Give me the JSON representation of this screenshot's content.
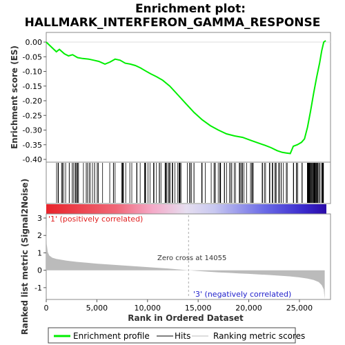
{
  "chart_data": {
    "type": "line",
    "title_line1": "Enrichment plot:",
    "title_line2": "HALLMARK_INTERFERON_GAMMA_RESPONSE",
    "es_ylabel": "Enrichment score (ES)",
    "metric_ylabel": "Ranked list metric (Signal2Noise)",
    "xlabel": "Rank in Ordered Dataset",
    "xlim": [
      0,
      28000
    ],
    "x_ticks": [
      "0",
      "5,000",
      "10,000",
      "15,000",
      "20,000",
      "25,000"
    ],
    "x_tick_values": [
      0,
      5000,
      10000,
      15000,
      20000,
      25000
    ],
    "es_ylim": [
      -0.4,
      0.0
    ],
    "es_ticks": [
      "0.00",
      "-0.05",
      "-0.10",
      "-0.15",
      "-0.20",
      "-0.25",
      "-0.30",
      "-0.35",
      "-0.40"
    ],
    "es_tick_values": [
      0.0,
      -0.05,
      -0.1,
      -0.15,
      -0.2,
      -0.25,
      -0.3,
      -0.35,
      -0.4
    ],
    "metric_ylim": [
      -1.6,
      3.0
    ],
    "metric_ticks": [
      "3",
      "2",
      "1",
      "0",
      "-1"
    ],
    "metric_tick_values": [
      3,
      2,
      1,
      0,
      -1
    ],
    "zero_cross_label": "Zero cross at 14055",
    "zero_cross": 14055,
    "pos_label": "'1' (positively correlated)",
    "neg_label": "'3' (negatively correlated)",
    "enrichment_profile": {
      "x": [
        0,
        1000,
        1300,
        1800,
        2200,
        2600,
        3100,
        3600,
        4200,
        4700,
        5200,
        5800,
        6300,
        6800,
        7300,
        7800,
        8300,
        8800,
        9300,
        9800,
        10300,
        10900,
        11500,
        12200,
        13000,
        13800,
        14600,
        15400,
        16200,
        17000,
        17800,
        18600,
        19400,
        20200,
        21000,
        21600,
        22200,
        22800,
        23300,
        23700,
        24100,
        24400,
        24800,
        25200,
        25500,
        25800,
        26100,
        26400,
        26700,
        27000,
        27200,
        27400,
        27600
      ],
      "y": [
        0.0,
        -0.033,
        -0.025,
        -0.04,
        -0.047,
        -0.043,
        -0.053,
        -0.056,
        -0.058,
        -0.062,
        -0.066,
        -0.075,
        -0.068,
        -0.058,
        -0.062,
        -0.072,
        -0.075,
        -0.08,
        -0.088,
        -0.098,
        -0.108,
        -0.118,
        -0.13,
        -0.15,
        -0.18,
        -0.21,
        -0.24,
        -0.265,
        -0.285,
        -0.3,
        -0.313,
        -0.32,
        -0.325,
        -0.335,
        -0.345,
        -0.352,
        -0.36,
        -0.37,
        -0.376,
        -0.378,
        -0.38,
        -0.355,
        -0.35,
        -0.342,
        -0.33,
        -0.29,
        -0.235,
        -0.175,
        -0.12,
        -0.07,
        -0.03,
        0.0,
        0.005
      ],
      "color": "#00ee00"
    },
    "hits_color": "#000000",
    "metric_color": "#bbbbbb",
    "metric_series": {
      "x": [
        0,
        50,
        150,
        300,
        600,
        1000,
        2000,
        3000,
        4000,
        5000,
        6000,
        7000,
        8000,
        9000,
        10000,
        11000,
        12000,
        13000,
        14055,
        15000,
        16000,
        17000,
        18000,
        19000,
        20000,
        21000,
        22000,
        23000,
        24000,
        25000,
        25800,
        26400,
        26900,
        27200,
        27400,
        27500
      ],
      "y": [
        2.7,
        1.5,
        1.05,
        0.85,
        0.72,
        0.65,
        0.55,
        0.48,
        0.43,
        0.38,
        0.34,
        0.3,
        0.26,
        0.22,
        0.18,
        0.14,
        0.1,
        0.05,
        0.0,
        -0.04,
        -0.08,
        -0.12,
        -0.15,
        -0.18,
        -0.21,
        -0.24,
        -0.27,
        -0.31,
        -0.35,
        -0.41,
        -0.48,
        -0.56,
        -0.68,
        -0.85,
        -1.1,
        -1.65
      ]
    },
    "legend": [
      {
        "label": "Enrichment profile",
        "color": "#00ee00"
      },
      {
        "label": "Hits",
        "color": "#000000"
      },
      {
        "label": "Ranking metric scores",
        "color": "#bbbbbb"
      }
    ]
  }
}
